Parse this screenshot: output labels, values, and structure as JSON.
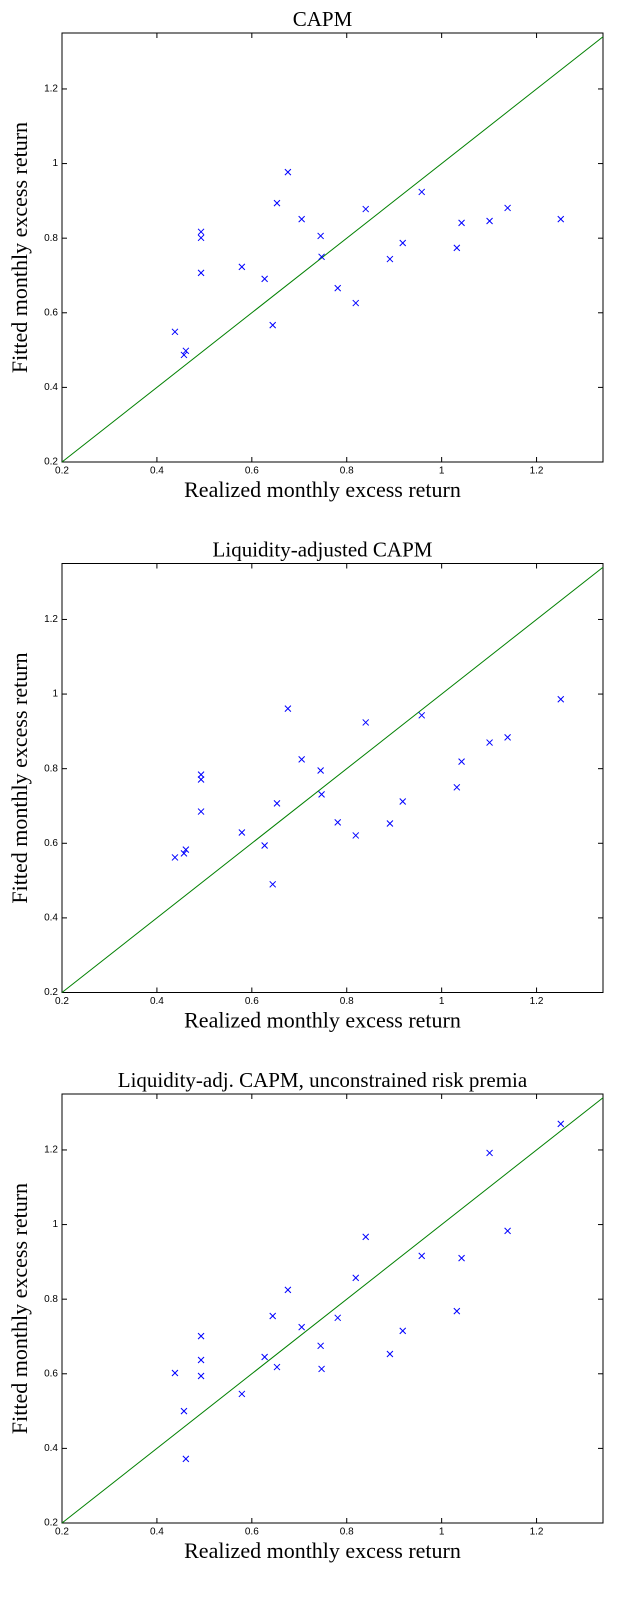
{
  "chart_data": [
    {
      "type": "scatter",
      "title": "CAPM",
      "x_label": "Realized monthly excess return",
      "y_label": "Fitted monthly excess return",
      "xlim": [
        0.2,
        1.34
      ],
      "ylim": [
        0.2,
        1.35
      ],
      "xticks": [
        0.2,
        0.4,
        0.6,
        0.8,
        1,
        1.2
      ],
      "yticks": [
        0.2,
        0.4,
        0.6,
        0.8,
        1,
        1.2
      ],
      "line_color": "#008000",
      "series": [
        {
          "color": "#0000ff",
          "x": [
            0.438,
            0.457,
            0.461,
            0.493,
            0.493,
            0.493,
            0.579,
            0.627,
            0.644,
            0.653,
            0.676,
            0.705,
            0.745,
            0.747,
            0.781,
            0.819,
            0.84,
            0.891,
            0.918,
            0.958,
            1.032,
            1.042,
            1.101,
            1.139,
            1.251
          ],
          "y": [
            0.549,
            0.487,
            0.498,
            0.817,
            0.801,
            0.707,
            0.723,
            0.691,
            0.567,
            0.894,
            0.977,
            0.851,
            0.806,
            0.75,
            0.666,
            0.626,
            0.878,
            0.744,
            0.787,
            0.924,
            0.774,
            0.841,
            0.846,
            0.881,
            0.851
          ]
        }
      ]
    },
    {
      "type": "scatter",
      "title": "Liquidity-adjusted CAPM",
      "x_label": "Realized monthly excess return",
      "y_label": "Fitted monthly excess return",
      "xlim": [
        0.2,
        1.34
      ],
      "ylim": [
        0.2,
        1.35
      ],
      "xticks": [
        0.2,
        0.4,
        0.6,
        0.8,
        1,
        1.2
      ],
      "yticks": [
        0.2,
        0.4,
        0.6,
        0.8,
        1,
        1.2
      ],
      "line_color": "#008000",
      "series": [
        {
          "color": "#0000ff",
          "x": [
            0.438,
            0.457,
            0.461,
            0.493,
            0.493,
            0.493,
            0.579,
            0.627,
            0.644,
            0.653,
            0.676,
            0.705,
            0.745,
            0.747,
            0.781,
            0.819,
            0.84,
            0.891,
            0.918,
            0.958,
            1.032,
            1.042,
            1.101,
            1.139,
            1.251
          ],
          "y": [
            0.562,
            0.573,
            0.583,
            0.784,
            0.771,
            0.685,
            0.629,
            0.594,
            0.49,
            0.707,
            0.961,
            0.825,
            0.795,
            0.731,
            0.656,
            0.621,
            0.924,
            0.653,
            0.712,
            0.943,
            0.75,
            0.819,
            0.87,
            0.884,
            0.986
          ]
        }
      ]
    },
    {
      "type": "scatter",
      "title": "Liquidity-adj. CAPM, unconstrained risk premia",
      "x_label": "Realized monthly excess return",
      "y_label": "Fitted monthly excess return",
      "xlim": [
        0.2,
        1.34
      ],
      "ylim": [
        0.2,
        1.35
      ],
      "xticks": [
        0.2,
        0.4,
        0.6,
        0.8,
        1,
        1.2
      ],
      "yticks": [
        0.2,
        0.4,
        0.6,
        0.8,
        1,
        1.2
      ],
      "line_color": "#008000",
      "series": [
        {
          "color": "#0000ff",
          "x": [
            0.438,
            0.457,
            0.461,
            0.493,
            0.493,
            0.493,
            0.579,
            0.627,
            0.644,
            0.653,
            0.676,
            0.705,
            0.745,
            0.747,
            0.781,
            0.819,
            0.84,
            0.891,
            0.918,
            0.958,
            1.032,
            1.042,
            1.101,
            1.139,
            1.251
          ],
          "y": [
            0.602,
            0.5,
            0.372,
            0.701,
            0.637,
            0.594,
            0.546,
            0.645,
            0.755,
            0.618,
            0.825,
            0.725,
            0.675,
            0.613,
            0.75,
            0.857,
            0.967,
            0.653,
            0.715,
            0.916,
            0.768,
            0.91,
            1.192,
            0.983,
            1.27
          ]
        }
      ]
    }
  ]
}
